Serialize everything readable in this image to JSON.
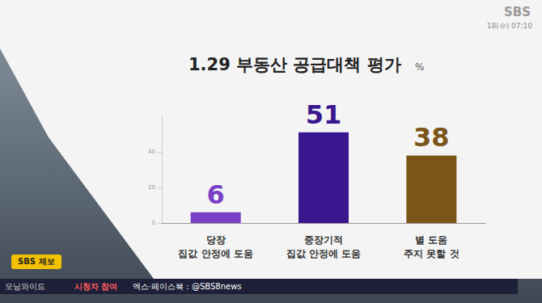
{
  "chart_data": {
    "type": "bar",
    "title": "1.29 부동산 공급대책 평가",
    "subtitle": "%",
    "categories": [
      "당장\n집값 안정에 도움",
      "중장기적\n집값 안정에 도움",
      "별 도움\n주지 못할 것"
    ],
    "values": [
      6,
      51,
      38
    ],
    "colors": [
      "#7a3fc6",
      "#3a168f",
      "#7a5418"
    ],
    "ylim": [
      0,
      60
    ],
    "yticks": [
      0,
      20,
      40
    ],
    "grid": false,
    "data_labels": true
  },
  "screen": {
    "logo": "SBS",
    "timestamp": "18(수) 07:10",
    "report_button": "SBS 제보",
    "program": "모닝와이드",
    "ticker_label": "시청자 참여",
    "ticker_text": "엑스·페이스북 : @SBS8news"
  }
}
